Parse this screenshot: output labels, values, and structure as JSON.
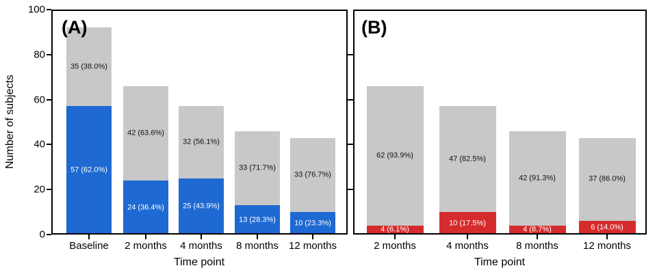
{
  "figure": {
    "background": "#ffffff",
    "axis_color": "#000000",
    "bar_base_color": "#c8c8c8",
    "panel_a_accent_color": "#1e69d2",
    "panel_b_accent_color": "#d62b2c"
  },
  "chart_data": [
    {
      "type": "bar",
      "panel_label": "(A)",
      "stacked": true,
      "xlabel": "Time point",
      "ylabel": "Number of subjects",
      "ylim": [
        0,
        100
      ],
      "yticks": [
        0,
        20,
        40,
        60,
        80,
        100
      ],
      "grid": false,
      "legend": false,
      "categories": [
        "Baseline",
        "2 months",
        "4 months",
        "8 months",
        "12 months"
      ],
      "totals": [
        92,
        66,
        57,
        46,
        43
      ],
      "series": [
        {
          "name": "highlighted-subjects",
          "color": "#1e69d2",
          "label_color": "#ffffff",
          "values": [
            57,
            24,
            25,
            13,
            10
          ],
          "labels": [
            "57 (62.0%)",
            "24 (36.4%)",
            "25 (43.9%)",
            "13 (28.3%)",
            "10 (23.3%)"
          ]
        },
        {
          "name": "remaining-subjects",
          "color": "#c8c8c8",
          "label_color": "#111111",
          "values": [
            35,
            42,
            32,
            33,
            33
          ],
          "labels": [
            "35 (38.0%)",
            "42 (63.6%)",
            "32 (56.1%)",
            "33 (71.7%)",
            "33 (76.7%)"
          ]
        }
      ]
    },
    {
      "type": "bar",
      "panel_label": "(B)",
      "stacked": true,
      "xlabel": "Time point",
      "ylim": [
        0,
        100
      ],
      "yticks": [
        0,
        20,
        40,
        60,
        80,
        100
      ],
      "grid": false,
      "legend": false,
      "categories": [
        "2 months",
        "4 months",
        "8 months",
        "12 months"
      ],
      "totals": [
        66,
        57,
        46,
        43
      ],
      "series": [
        {
          "name": "highlighted-subjects",
          "color": "#d62b2c",
          "label_color": "#ffffff",
          "values": [
            4,
            10,
            4,
            6
          ],
          "labels": [
            "4 (6.1%)",
            "10 (17.5%)",
            "4 (8.7%)",
            "6 (14.0%)"
          ]
        },
        {
          "name": "remaining-subjects",
          "color": "#c8c8c8",
          "label_color": "#111111",
          "values": [
            62,
            47,
            42,
            37
          ],
          "labels": [
            "62 (93.9%)",
            "47 (82.5%)",
            "42 (91.3%)",
            "37 (86.0%)"
          ]
        }
      ]
    }
  ]
}
